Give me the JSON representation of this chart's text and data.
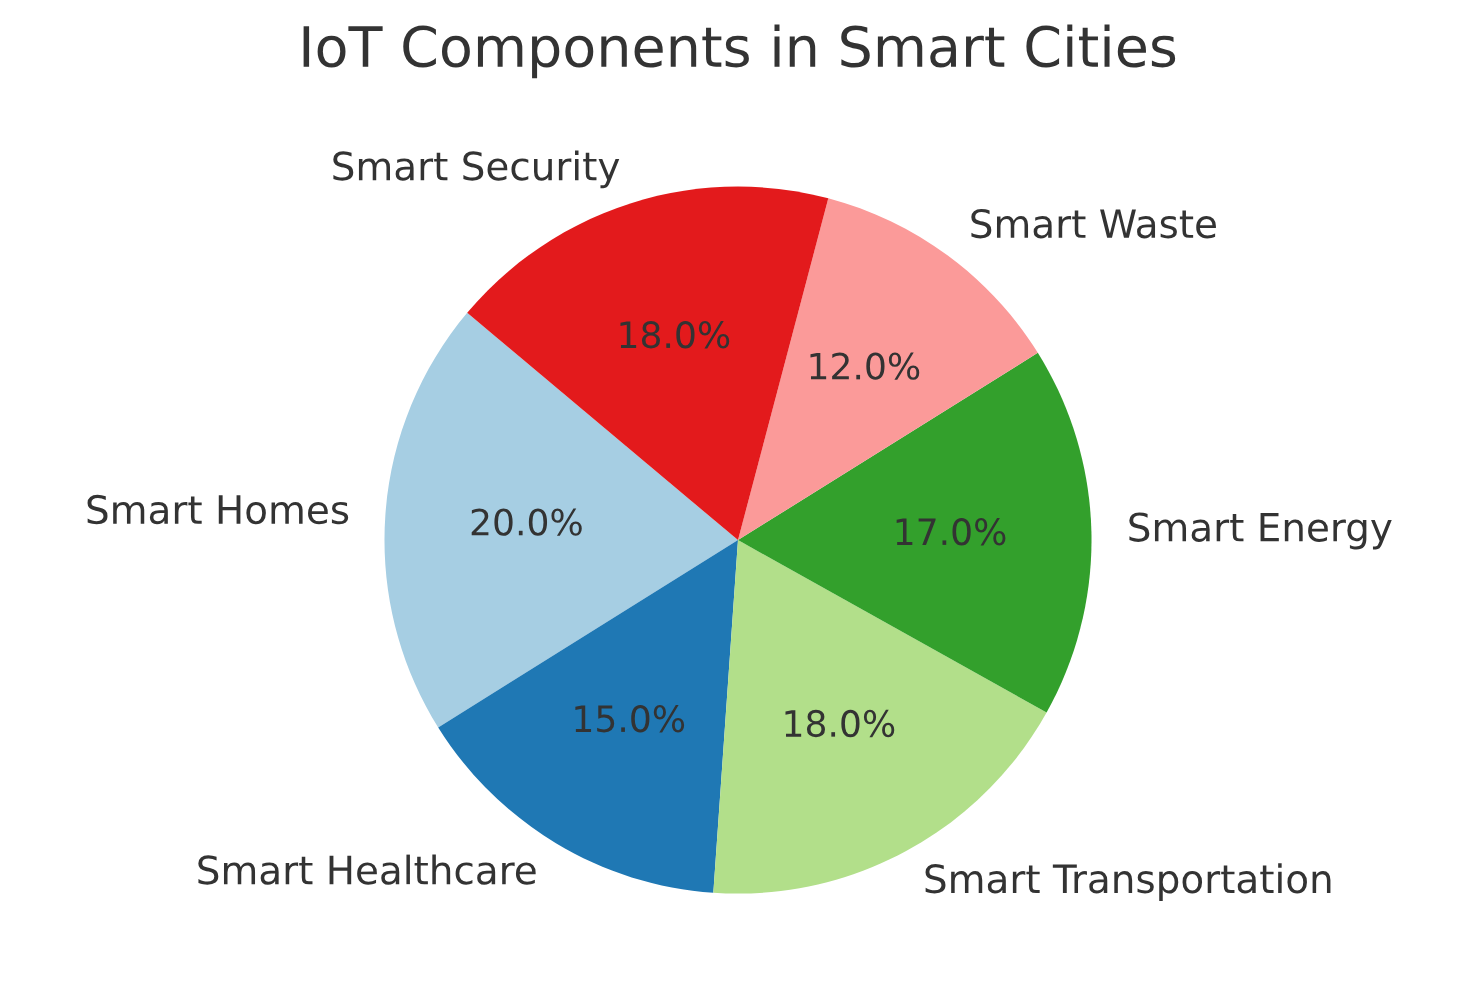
{
  "chart_data": {
    "type": "pie",
    "title": "IoT Components in Smart Cities",
    "categories": [
      "Smart Homes",
      "Smart Healthcare",
      "Smart Transportation",
      "Smart Energy",
      "Smart Waste",
      "Smart Security"
    ],
    "values": [
      20,
      15,
      18,
      17,
      12,
      18
    ],
    "value_labels": [
      "20.0%",
      "15.0%",
      "18.0%",
      "17.0%",
      "12.0%",
      "18.0%"
    ],
    "colors": [
      "#a6cee3",
      "#1f78b4",
      "#b2df8a",
      "#33a02c",
      "#fb9a99",
      "#e31a1c"
    ]
  }
}
